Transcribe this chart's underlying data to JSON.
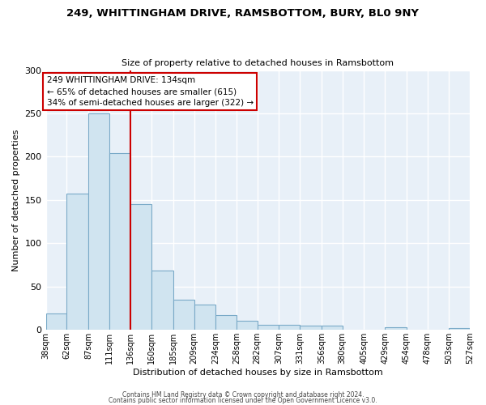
{
  "title": "249, WHITTINGHAM DRIVE, RAMSBOTTOM, BURY, BL0 9NY",
  "subtitle": "Size of property relative to detached houses in Ramsbottom",
  "xlabel": "Distribution of detached houses by size in Ramsbottom",
  "ylabel": "Number of detached properties",
  "bar_color": "#d0e4f0",
  "bar_edge_color": "#7aaac8",
  "bin_edges": [
    38,
    62,
    87,
    111,
    136,
    160,
    185,
    209,
    234,
    258,
    282,
    307,
    331,
    356,
    380,
    405,
    429,
    454,
    478,
    503,
    527
  ],
  "bin_labels": [
    "38sqm",
    "62sqm",
    "87sqm",
    "111sqm",
    "136sqm",
    "160sqm",
    "185sqm",
    "209sqm",
    "234sqm",
    "258sqm",
    "282sqm",
    "307sqm",
    "331sqm",
    "356sqm",
    "380sqm",
    "405sqm",
    "429sqm",
    "454sqm",
    "478sqm",
    "503sqm",
    "527sqm"
  ],
  "bar_heights": [
    19,
    157,
    250,
    204,
    145,
    68,
    35,
    29,
    17,
    10,
    6,
    6,
    5,
    5,
    0,
    0,
    3,
    0,
    0,
    2
  ],
  "vline_x": 136,
  "vline_color": "#cc0000",
  "annotation_text": "249 WHITTINGHAM DRIVE: 134sqm\n← 65% of detached houses are smaller (615)\n34% of semi-detached houses are larger (322) →",
  "annotation_box_color": "#ffffff",
  "annotation_box_edge": "#cc0000",
  "ylim": [
    0,
    300
  ],
  "yticks": [
    0,
    50,
    100,
    150,
    200,
    250,
    300
  ],
  "footer1": "Contains HM Land Registry data © Crown copyright and database right 2024.",
  "footer2": "Contains public sector information licensed under the Open Government Licence v3.0.",
  "background_color": "#ffffff",
  "plot_bg_color": "#e8f0f8",
  "grid_color": "#ffffff"
}
